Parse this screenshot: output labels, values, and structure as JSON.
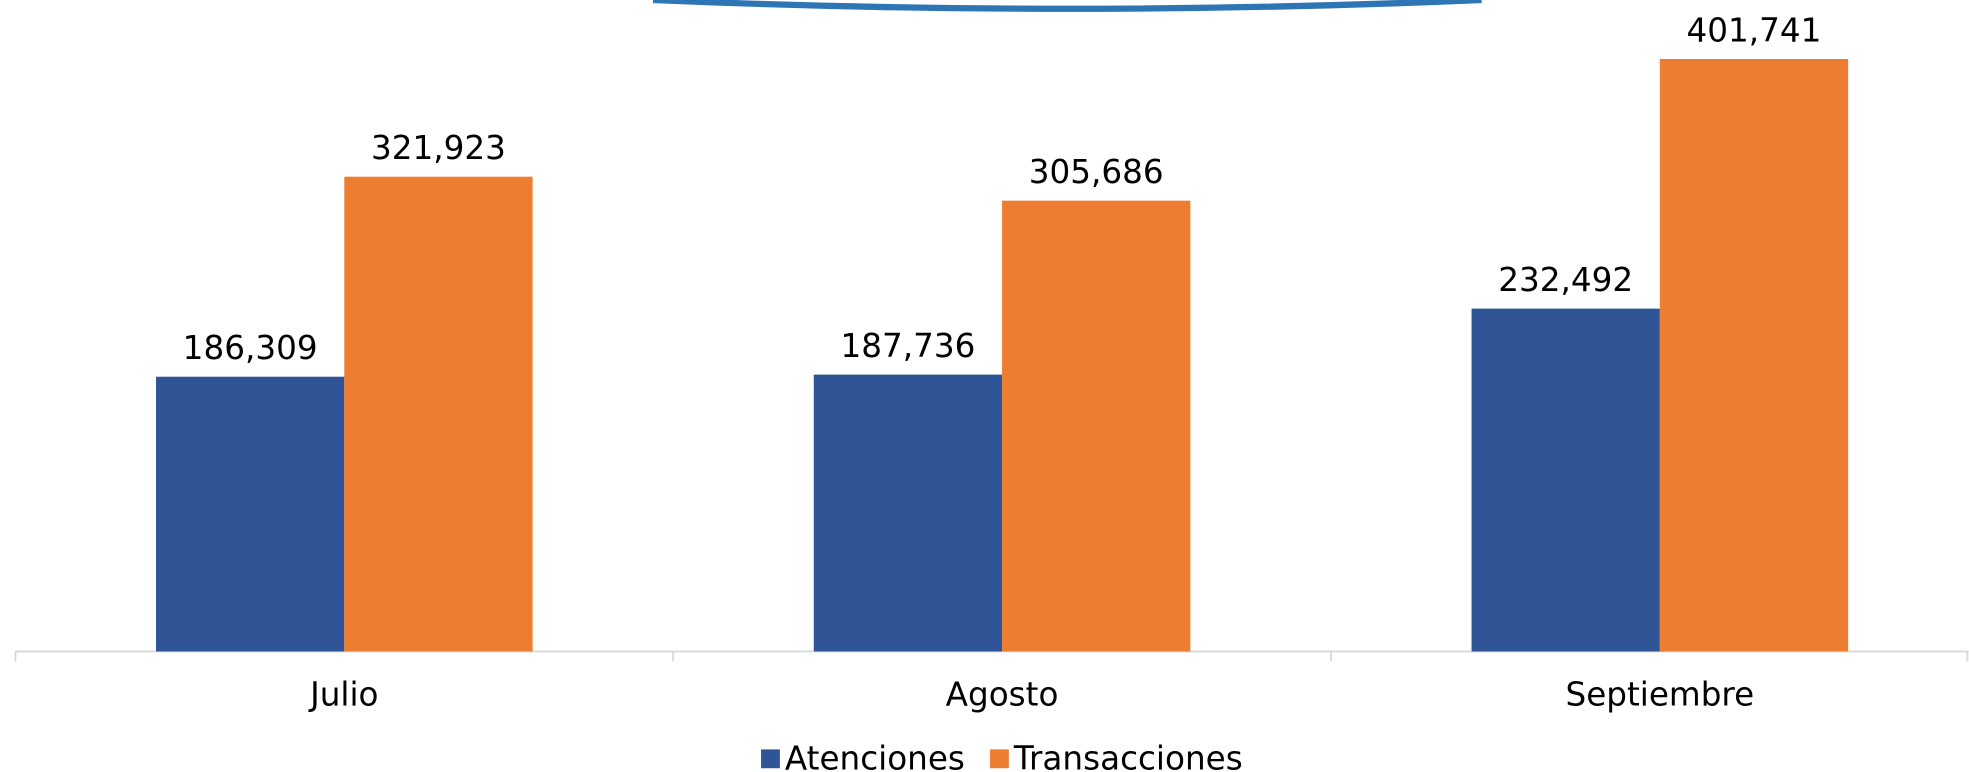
{
  "chart_data": {
    "type": "bar",
    "categories": [
      "Julio",
      "Agosto",
      "Septiembre"
    ],
    "series": [
      {
        "name": "Atenciones",
        "color": "#2f5597",
        "values": [
          186309,
          187736,
          232492
        ],
        "value_labels": [
          "186,309",
          "187,736",
          "232,492"
        ]
      },
      {
        "name": "Transacciones",
        "color": "#ed7d31",
        "values": [
          321923,
          305686,
          401741
        ],
        "value_labels": [
          "321,923",
          "305,686",
          "401,741"
        ]
      }
    ],
    "legend": "bottom"
  }
}
